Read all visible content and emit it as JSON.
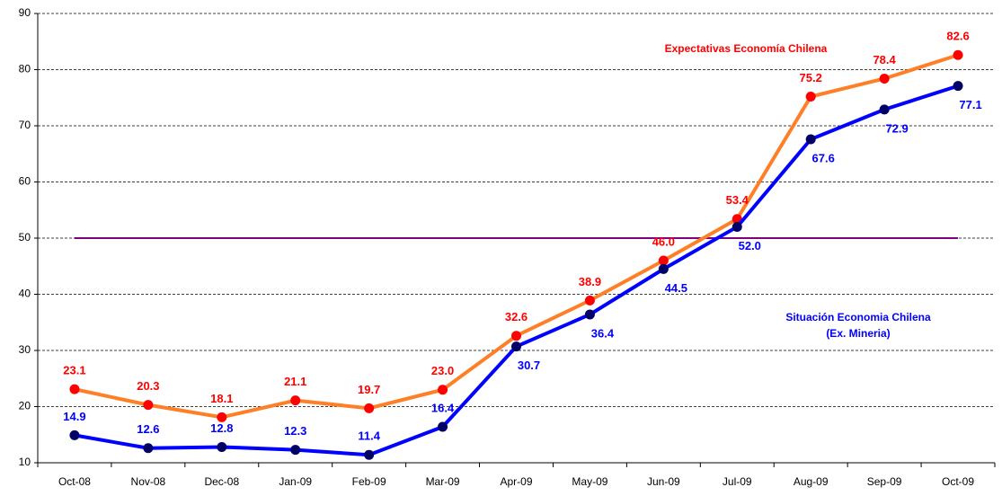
{
  "chart_data": {
    "type": "line",
    "categories": [
      "Oct-08",
      "Nov-08",
      "Dec-08",
      "Jan-09",
      "Feb-09",
      "Mar-09",
      "Apr-09",
      "May-09",
      "Jun-09",
      "Jul-09",
      "Aug-09",
      "Sep-09",
      "Oct-09"
    ],
    "series": [
      {
        "name": "Expectativas Economía Chilena",
        "color": "#ff7f27",
        "marker_color": "#ff0000",
        "label_color": "#ff0000",
        "values": [
          23.1,
          20.3,
          18.1,
          21.1,
          19.7,
          23.0,
          32.6,
          38.9,
          46.0,
          53.4,
          75.2,
          78.4,
          82.6
        ],
        "value_labels": [
          "23.1",
          "20.3",
          "18.1",
          "21.1",
          "19.7",
          "23.0",
          "32.6",
          "38.9",
          "46.0",
          "53.4",
          "75.2",
          "78.4",
          "82.6"
        ]
      },
      {
        "name": "Situación Economia Chilena",
        "color": "#0000ff",
        "marker_color": "#000066",
        "label_color": "#0000ff",
        "values": [
          14.9,
          12.6,
          12.8,
          12.3,
          11.4,
          16.4,
          30.7,
          36.4,
          44.5,
          52.0,
          67.6,
          72.9,
          77.1
        ],
        "value_labels": [
          "14.9",
          "12.6",
          "12.8",
          "12.3",
          "11.4",
          "16.4",
          "30.7",
          "36.4",
          "44.5",
          "52.0",
          "67.6",
          "72.9",
          "77.1"
        ]
      }
    ],
    "annotations": [
      "Expectativas Economía Chilena",
      "Situación Economia Chilena",
      "(Ex. Mineria)"
    ],
    "reference_line": {
      "value": 50,
      "color": "#800080"
    },
    "ylim": [
      10,
      90
    ],
    "yticks": [
      10,
      20,
      30,
      40,
      50,
      60,
      70,
      80,
      90
    ],
    "grid": true
  }
}
